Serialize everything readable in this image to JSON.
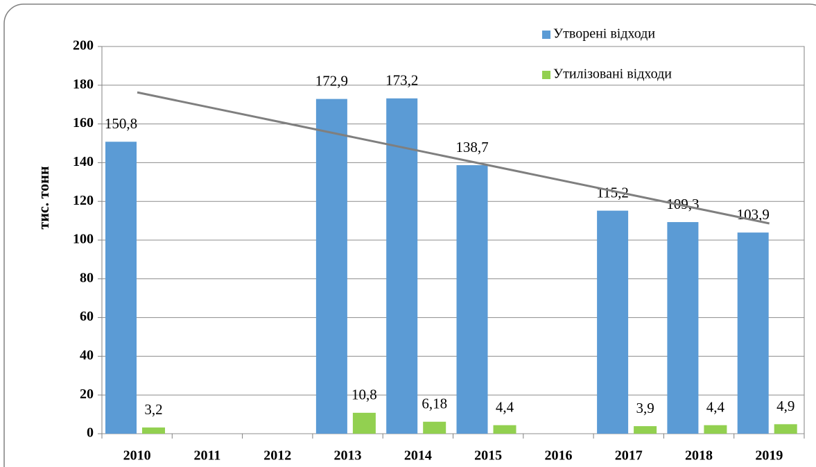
{
  "chart_data": {
    "type": "bar",
    "y_label": "тис. тонн",
    "categories": [
      "2010",
      "2011",
      "2012",
      "2013",
      "2014",
      "2015",
      "2016",
      "2017",
      "2018",
      "2019"
    ],
    "series": [
      {
        "name": "Утворені відходи",
        "color": "#5b9bd5",
        "values": [
          150.8,
          null,
          null,
          172.9,
          173.2,
          138.7,
          null,
          115.2,
          109.3,
          103.9
        ],
        "value_labels": [
          "150,8",
          null,
          null,
          "172,9",
          "173,2",
          "138,7",
          null,
          "115,2",
          "109,3",
          "103,9"
        ]
      },
      {
        "name": "Утилізовані відходи",
        "color": "#92d050",
        "values": [
          3.2,
          null,
          null,
          10.8,
          6.18,
          4.4,
          null,
          3.9,
          4.4,
          4.9
        ],
        "value_labels": [
          "3,2",
          null,
          null,
          "10,8",
          "6,18",
          "4,4",
          null,
          "3,9",
          "4,4",
          "4,9"
        ]
      }
    ],
    "trend_line": {
      "from": 176.3,
      "to": 108.6,
      "color": "#7f7f7f"
    },
    "ylim": [
      0,
      200
    ],
    "yticks": [
      0,
      20,
      40,
      60,
      80,
      100,
      120,
      140,
      160,
      180,
      200
    ],
    "grid": true
  }
}
